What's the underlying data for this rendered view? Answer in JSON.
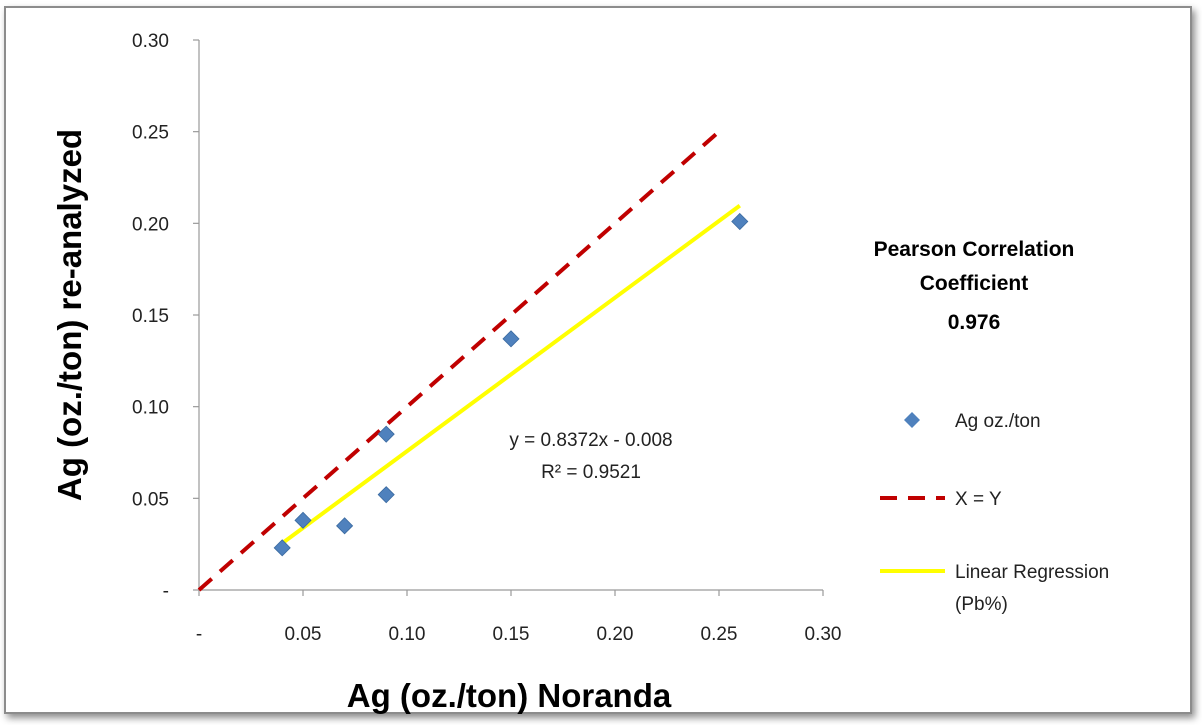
{
  "chart_data": {
    "type": "scatter",
    "xlabel": "Ag (oz./ton)  Noranda",
    "ylabel": "Ag (oz./ton) re-analyzed",
    "xlim": [
      0,
      0.3
    ],
    "ylim": [
      0,
      0.3
    ],
    "x_ticks": [
      "-",
      "0.05",
      "0.10",
      "0.15",
      "0.20",
      "0.25",
      "0.30"
    ],
    "y_ticks": [
      "-",
      "0.05",
      "0.10",
      "0.15",
      "0.20",
      "0.25",
      "0.30"
    ],
    "grid": false,
    "legend_position": "right",
    "series": [
      {
        "name": "Ag oz./ton",
        "kind": "points",
        "marker": "diamond",
        "color": "#4F81BD",
        "points": [
          {
            "x": 0.04,
            "y": 0.023
          },
          {
            "x": 0.05,
            "y": 0.038
          },
          {
            "x": 0.07,
            "y": 0.035
          },
          {
            "x": 0.09,
            "y": 0.085
          },
          {
            "x": 0.09,
            "y": 0.052
          },
          {
            "x": 0.15,
            "y": 0.137
          },
          {
            "x": 0.26,
            "y": 0.201
          }
        ]
      },
      {
        "name": "X = Y",
        "kind": "line",
        "style": "dashed",
        "color": "#C00000",
        "x_range": [
          0,
          0.25
        ]
      },
      {
        "name": "Linear Regression\n(Pb%)",
        "kind": "line",
        "style": "solid",
        "color": "#FFFF00",
        "slope": 0.8372,
        "intercept": -0.008,
        "x_range": [
          0.04,
          0.26
        ]
      }
    ],
    "equation_label": "y = 0.8372x - 0.008",
    "r2_label": "R² = 0.9521",
    "annotation": {
      "lines": [
        "Pearson Correlation",
        "Coefficient",
        "0.976"
      ]
    }
  }
}
